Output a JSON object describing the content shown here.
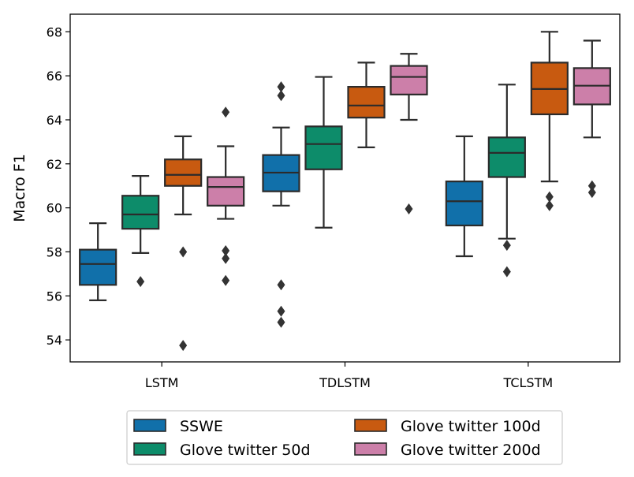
{
  "chart_data": {
    "type": "boxplot",
    "ylabel": "Macro F1",
    "xlabel": "",
    "ylim": [
      53,
      68.8
    ],
    "yticks": [
      54,
      56,
      58,
      60,
      62,
      64,
      66,
      68
    ],
    "categories": [
      "LSTM",
      "TDLSTM",
      "TCLSTM"
    ],
    "legend_position": "bottom-center",
    "grid": false,
    "series": [
      {
        "name": "SSWE",
        "color": "#1170aa",
        "boxes": [
          {
            "whisker_low": 55.8,
            "q1": 56.5,
            "median": 57.45,
            "q3": 58.1,
            "whisker_high": 59.3,
            "outliers": []
          },
          {
            "whisker_low": 60.1,
            "q1": 60.75,
            "median": 61.6,
            "q3": 62.4,
            "whisker_high": 63.65,
            "outliers": [
              65.5,
              65.1,
              56.5,
              55.3,
              54.8
            ]
          },
          {
            "whisker_low": 57.8,
            "q1": 59.2,
            "median": 60.3,
            "q3": 61.2,
            "whisker_high": 63.25,
            "outliers": []
          }
        ]
      },
      {
        "name": "Glove twitter 50d",
        "color": "#0d8c6a",
        "boxes": [
          {
            "whisker_low": 57.95,
            "q1": 59.05,
            "median": 59.7,
            "q3": 60.55,
            "whisker_high": 61.45,
            "outliers": [
              56.65
            ]
          },
          {
            "whisker_low": 59.1,
            "q1": 61.75,
            "median": 62.9,
            "q3": 63.7,
            "whisker_high": 65.95,
            "outliers": []
          },
          {
            "whisker_low": 58.6,
            "q1": 61.4,
            "median": 62.5,
            "q3": 63.2,
            "whisker_high": 65.6,
            "outliers": [
              58.3,
              57.1
            ]
          }
        ]
      },
      {
        "name": "Glove twitter 100d",
        "color": "#c85a10",
        "boxes": [
          {
            "whisker_low": 59.7,
            "q1": 61.0,
            "median": 61.5,
            "q3": 62.2,
            "whisker_high": 63.25,
            "outliers": [
              58.0,
              53.75
            ]
          },
          {
            "whisker_low": 62.75,
            "q1": 64.1,
            "median": 64.65,
            "q3": 65.5,
            "whisker_high": 66.6,
            "outliers": []
          },
          {
            "whisker_low": 61.2,
            "q1": 64.25,
            "median": 65.4,
            "q3": 66.6,
            "whisker_high": 68.0,
            "outliers": [
              60.5,
              60.1
            ]
          }
        ]
      },
      {
        "name": "Glove twitter 200d",
        "color": "#cc7fa9",
        "boxes": [
          {
            "whisker_low": 59.5,
            "q1": 60.1,
            "median": 60.95,
            "q3": 61.4,
            "whisker_high": 62.8,
            "outliers": [
              64.35,
              58.05,
              57.7,
              56.7
            ]
          },
          {
            "whisker_low": 64.0,
            "q1": 65.15,
            "median": 65.95,
            "q3": 66.45,
            "whisker_high": 67.0,
            "outliers": [
              59.95
            ]
          },
          {
            "whisker_low": 63.2,
            "q1": 64.7,
            "median": 65.55,
            "q3": 66.35,
            "whisker_high": 67.6,
            "outliers": [
              61.0,
              60.7
            ]
          }
        ]
      }
    ]
  }
}
